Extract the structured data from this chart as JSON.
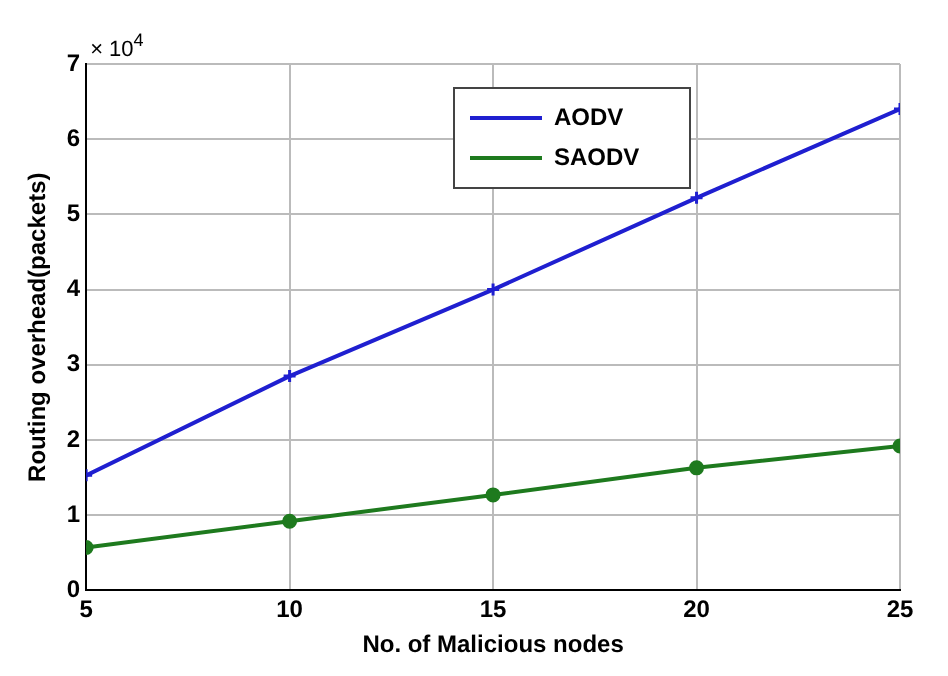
{
  "chart_data": {
    "type": "line",
    "xlabel": "No. of Malicious nodes",
    "ylabel": "Routing overhead(packets)",
    "annotations": [
      "× 10$^{4}$"
    ],
    "x": [
      5,
      10,
      15,
      20,
      25
    ],
    "series": [
      {
        "name": "AODV",
        "color": "#1f1fd0",
        "marker": "cross",
        "values": [
          1.53,
          2.85,
          4.0,
          5.22,
          6.4
        ]
      },
      {
        "name": "SAODV",
        "color": "#1e7a1e",
        "marker": "circle",
        "values": [
          0.57,
          0.92,
          1.27,
          1.63,
          1.92
        ]
      }
    ],
    "xlim": [
      5,
      25
    ],
    "xticks": [
      5,
      10,
      15,
      20,
      25
    ],
    "ylim": [
      0,
      7
    ],
    "yticks": [
      0,
      1,
      2,
      3,
      4,
      5,
      6,
      7
    ],
    "grid": true,
    "legend": "top right",
    "line_style": "solid"
  }
}
